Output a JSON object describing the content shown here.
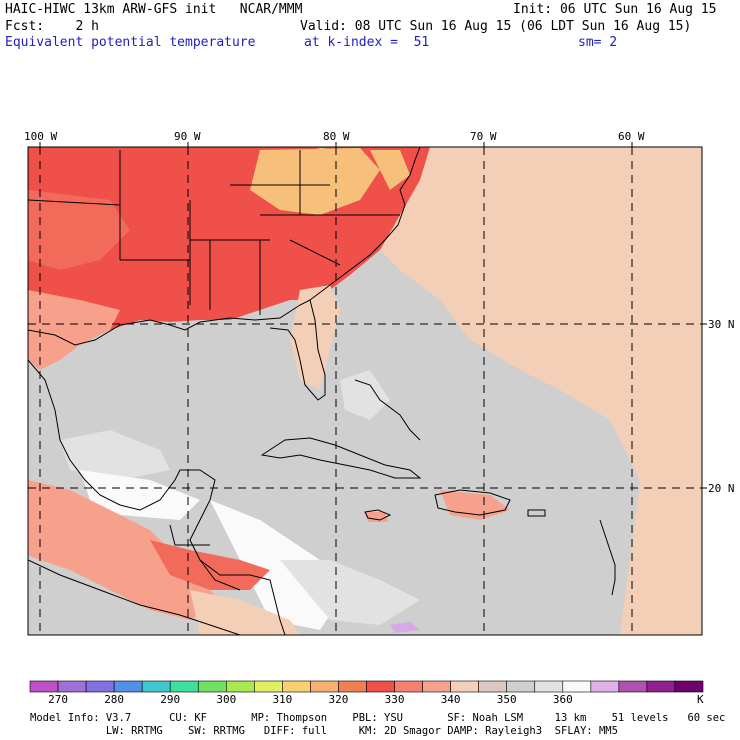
{
  "header": {
    "title": "HAIC-HIWC 13km ARW-GFS init   NCAR/MMM",
    "init": "Init: 06 UTC Sun 16 Aug 15",
    "fcst": "Fcst:    2 h",
    "valid": "Valid: 08 UTC Sun 16 Aug 15 (06 LDT Sun 16 Aug 15)",
    "field": "Equivalent potential temperature",
    "level": "at k-index =  51",
    "smoothing": "sm= 2"
  },
  "map": {
    "lon_labels": [
      "100 W",
      "90 W",
      "80 W",
      "70 W",
      "60 W"
    ],
    "lat_labels": [
      "30 N",
      "20 N"
    ],
    "colors": {
      "hot": "#f0504a",
      "hot2": "#f26a5a",
      "warm": "#f7a08c",
      "tan": "#f2cfb6",
      "gray": "#cfcfcf",
      "lightgray": "#e2e2e2",
      "white": "#fafafa",
      "yellow": "#e8f070",
      "orange": "#f7c07a",
      "lavender": "#d8a8e8"
    }
  },
  "colorbar": {
    "colors": [
      "#c050c8",
      "#a070d8",
      "#8070e0",
      "#5090e8",
      "#40c8d0",
      "#40e0a0",
      "#70e060",
      "#a8e850",
      "#e0f060",
      "#f8d070",
      "#f7b070",
      "#f08050",
      "#f0504a",
      "#f58070",
      "#f7a08c",
      "#f2cfb6",
      "#dcc8c0",
      "#cfcfcf",
      "#e2e2e2",
      "#fafafa",
      "#e0b0e8",
      "#b050b0",
      "#902090",
      "#700070"
    ],
    "labels": [
      "270",
      "280",
      "290",
      "300",
      "310",
      "320",
      "330",
      "340",
      "350",
      "360"
    ],
    "unit": "K"
  },
  "footer": {
    "line1": "Model Info: V3.7      CU: KF       MP: Thompson    PBL: YSU       SF: Noah LSM     13 km    51 levels   60 sec",
    "line2": "            LW: RRTMG    SW: RRTMG   DIFF: full     KM: 2D Smagor DAMP: Rayleigh3  SFLAY: MM5"
  }
}
